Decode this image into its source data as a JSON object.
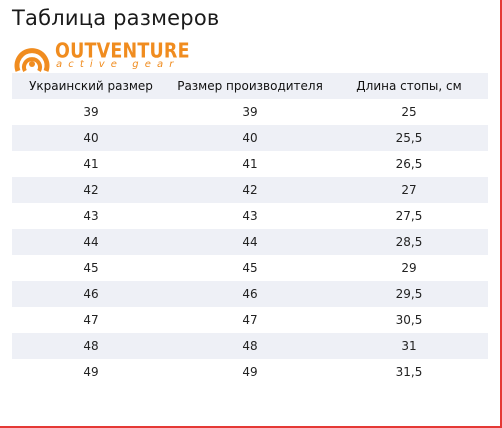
{
  "page": {
    "title": "Таблица размеров"
  },
  "logo": {
    "brand": "OUTVENTURE",
    "tagline": "active gear",
    "color": "#f08c1f"
  },
  "table": {
    "headers": [
      "Украинский размер",
      "Размер производителя",
      "Длина стопы, см"
    ],
    "rows": [
      [
        "39",
        "39",
        "25"
      ],
      [
        "40",
        "40",
        "25,5"
      ],
      [
        "41",
        "41",
        "26,5"
      ],
      [
        "42",
        "42",
        "27"
      ],
      [
        "43",
        "43",
        "27,5"
      ],
      [
        "44",
        "44",
        "28,5"
      ],
      [
        "45",
        "45",
        "29"
      ],
      [
        "46",
        "46",
        "29,5"
      ],
      [
        "47",
        "47",
        "30,5"
      ],
      [
        "48",
        "48",
        "31"
      ],
      [
        "49",
        "49",
        "31,5"
      ]
    ]
  }
}
